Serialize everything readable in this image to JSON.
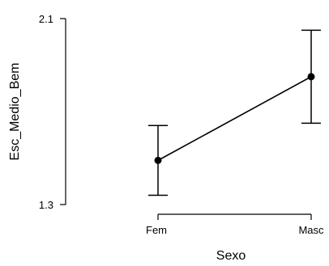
{
  "chart_data": {
    "type": "line",
    "title": "",
    "xlabel": "Sexo",
    "ylabel": "Esc_Medio_Bem",
    "categories": [
      "Fem",
      "Masc"
    ],
    "series": [
      {
        "values": [
          1.49,
          1.85
        ],
        "ci_lower": [
          1.34,
          1.65
        ],
        "ci_upper": [
          1.64,
          2.05
        ]
      }
    ],
    "ylim": [
      1.3,
      2.1
    ],
    "y_ticks": [
      "1.3",
      "2.1"
    ],
    "grid": false,
    "legend": "none"
  }
}
